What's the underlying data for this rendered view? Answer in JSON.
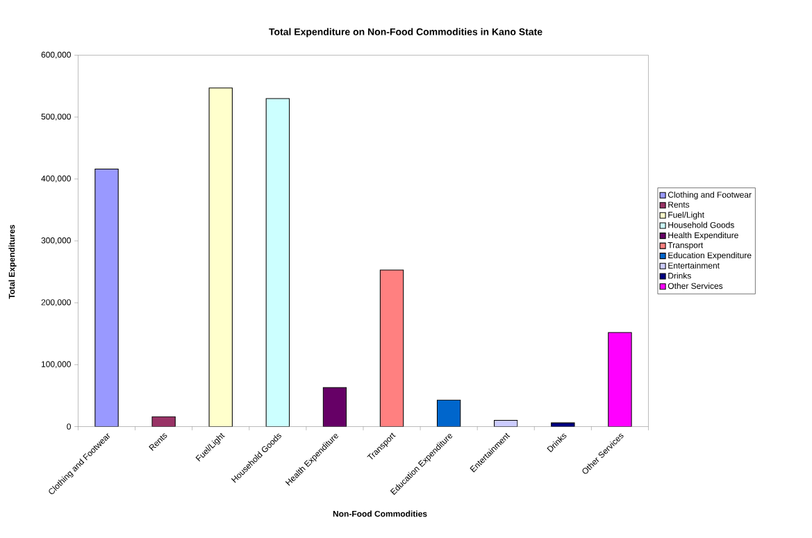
{
  "chart_data": {
    "type": "bar",
    "title": "Total Expenditure on Non-Food Commodities in Kano State",
    "xlabel": "Non-Food Commodities",
    "ylabel": "Total Expenditures",
    "categories": [
      "Clothing and Footwear",
      "Rents",
      "Fuel/Light",
      "Household Goods",
      "Health Expenditure",
      "Transport",
      "Education Expenditure",
      "Entertainment",
      "Drinks",
      "Other Services"
    ],
    "series": [
      {
        "name": "Clothing and Footwear",
        "color": "#9999ff",
        "values": [
          416000,
          null,
          null,
          null,
          null,
          null,
          null,
          null,
          null,
          null
        ]
      },
      {
        "name": "Rents",
        "color": "#993366",
        "values": [
          null,
          16000,
          null,
          null,
          null,
          null,
          null,
          null,
          null,
          null
        ]
      },
      {
        "name": "Fuel/Light",
        "color": "#ffffcc",
        "values": [
          null,
          null,
          547000,
          null,
          null,
          null,
          null,
          null,
          null,
          null
        ]
      },
      {
        "name": "Household Goods",
        "color": "#ccffff",
        "values": [
          null,
          null,
          null,
          530000,
          null,
          null,
          null,
          null,
          null,
          null
        ]
      },
      {
        "name": "Health Expenditure",
        "color": "#660066",
        "values": [
          null,
          null,
          null,
          null,
          63000,
          null,
          null,
          null,
          null,
          null
        ]
      },
      {
        "name": "Transport",
        "color": "#ff8080",
        "values": [
          null,
          null,
          null,
          null,
          null,
          253000,
          null,
          null,
          null,
          null
        ]
      },
      {
        "name": "Education Expenditure",
        "color": "#0066cc",
        "values": [
          null,
          null,
          null,
          null,
          null,
          null,
          43000,
          null,
          null,
          null
        ]
      },
      {
        "name": "Entertainment",
        "color": "#ccccff",
        "values": [
          null,
          null,
          null,
          null,
          null,
          null,
          null,
          10000,
          null,
          null
        ]
      },
      {
        "name": "Drinks",
        "color": "#000080",
        "values": [
          null,
          null,
          null,
          null,
          null,
          null,
          null,
          null,
          6000,
          null
        ]
      },
      {
        "name": "Other Services",
        "color": "#ff00ff",
        "values": [
          null,
          null,
          null,
          null,
          null,
          null,
          null,
          null,
          null,
          152000
        ]
      }
    ],
    "ylim": [
      0,
      600000
    ],
    "yticks": [
      0,
      {
        "value": 100000,
        "label": "100,000"
      },
      {
        "value": 200000,
        "label": "200,000"
      },
      {
        "value": 300000,
        "label": "300,000"
      },
      {
        "value": 400000,
        "label": "400,000"
      },
      {
        "value": 500000,
        "label": "500,000"
      },
      {
        "value": 600000,
        "label": "600,000"
      }
    ],
    "legend": "right"
  }
}
